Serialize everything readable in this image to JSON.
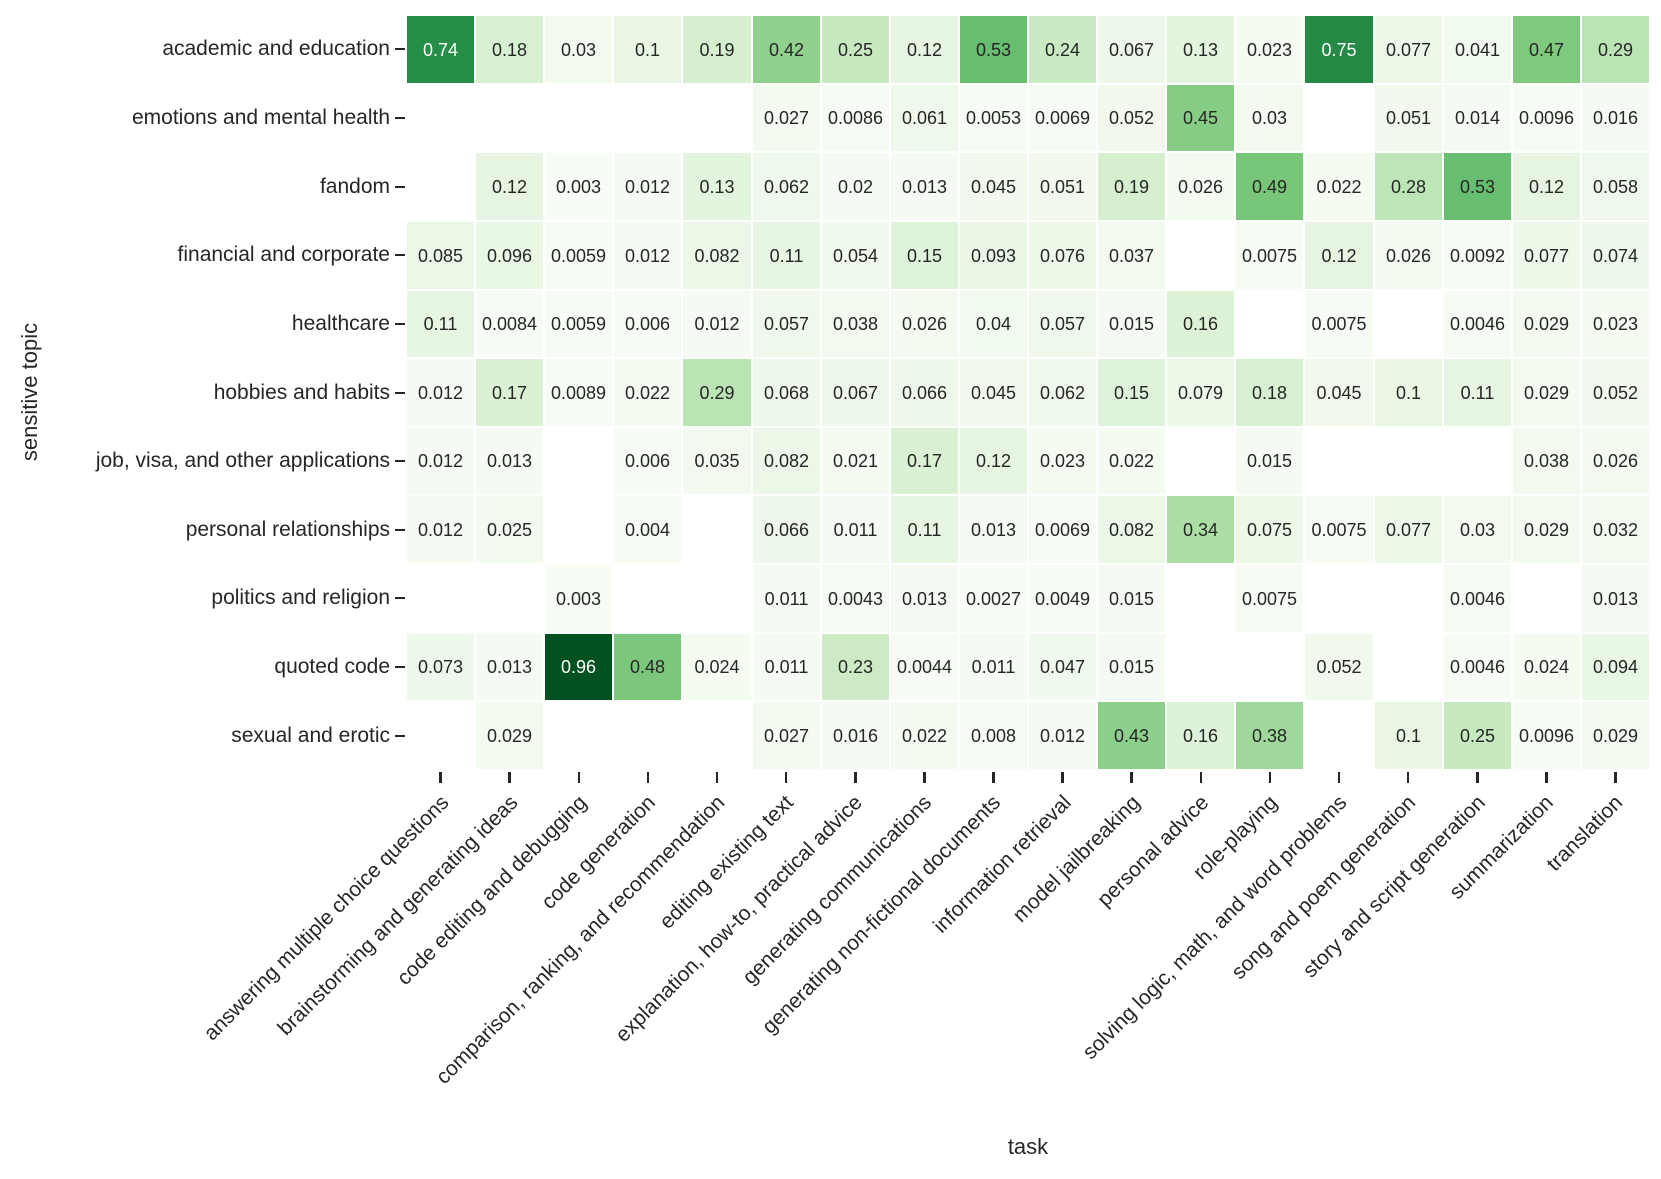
{
  "chart_data": {
    "type": "heatmap",
    "title": "",
    "xlabel": "task",
    "ylabel": "sensitive topic",
    "legend": "none",
    "grid": false,
    "vmin": 0,
    "vmax": 1,
    "missing_color": "#ffffff",
    "colormap": {
      "name": "Greens",
      "stops": [
        "#f7fcf5",
        "#e5f5e0",
        "#c7e9c0",
        "#a1d99b",
        "#74c476",
        "#41ab5d",
        "#238b45",
        "#006d2c",
        "#00441b"
      ]
    },
    "text_colors": {
      "dark": "#262626",
      "light": "#ffffff"
    },
    "x_categories": [
      "answering multiple choice questions",
      "brainstorming and generating ideas",
      "code editing and debugging",
      "code generation",
      "comparison, ranking, and recommendation",
      "editing existing text",
      "explanation, how-to, practical advice",
      "generating communications",
      "generating non-fictional documents",
      "information retrieval",
      "model jailbreaking",
      "personal advice",
      "role-playing",
      "solving logic, math, and word problems",
      "song and poem generation",
      "story and script generation",
      "summarization",
      "translation"
    ],
    "y_categories": [
      "academic and education",
      "emotions and mental health",
      "fandom",
      "financial and corporate",
      "healthcare",
      "hobbies and habits",
      "job, visa, and other applications",
      "personal relationships",
      "politics and religion",
      "quoted code",
      "sexual and erotic"
    ],
    "values": [
      [
        0.74,
        0.18,
        0.03,
        0.1,
        0.19,
        0.42,
        0.25,
        0.12,
        0.53,
        0.24,
        0.067,
        0.13,
        0.023,
        0.75,
        0.077,
        0.041,
        0.47,
        0.29
      ],
      [
        null,
        null,
        null,
        null,
        null,
        0.027,
        0.0086,
        0.061,
        0.0053,
        0.0069,
        0.052,
        0.45,
        0.03,
        null,
        0.051,
        0.014,
        0.0096,
        0.016
      ],
      [
        null,
        0.12,
        0.003,
        0.012,
        0.13,
        0.062,
        0.02,
        0.013,
        0.045,
        0.051,
        0.19,
        0.026,
        0.49,
        0.022,
        0.28,
        0.53,
        0.12,
        0.058
      ],
      [
        0.085,
        0.096,
        0.0059,
        0.012,
        0.082,
        0.11,
        0.054,
        0.15,
        0.093,
        0.076,
        0.037,
        null,
        0.0075,
        0.12,
        0.026,
        0.0092,
        0.077,
        0.074
      ],
      [
        0.11,
        0.0084,
        0.0059,
        0.006,
        0.012,
        0.057,
        0.038,
        0.026,
        0.04,
        0.057,
        0.015,
        0.16,
        null,
        0.0075,
        null,
        0.0046,
        0.029,
        0.023
      ],
      [
        0.012,
        0.17,
        0.0089,
        0.022,
        0.29,
        0.068,
        0.067,
        0.066,
        0.045,
        0.062,
        0.15,
        0.079,
        0.18,
        0.045,
        0.1,
        0.11,
        0.029,
        0.052
      ],
      [
        0.012,
        0.013,
        null,
        0.006,
        0.035,
        0.082,
        0.021,
        0.17,
        0.12,
        0.023,
        0.022,
        null,
        0.015,
        null,
        null,
        null,
        0.038,
        0.026
      ],
      [
        0.012,
        0.025,
        null,
        0.004,
        null,
        0.066,
        0.011,
        0.11,
        0.013,
        0.0069,
        0.082,
        0.34,
        0.075,
        0.0075,
        0.077,
        0.03,
        0.029,
        0.032
      ],
      [
        null,
        null,
        0.003,
        null,
        null,
        0.011,
        0.0043,
        0.013,
        0.0027,
        0.0049,
        0.015,
        null,
        0.0075,
        null,
        null,
        0.0046,
        null,
        0.013
      ],
      [
        0.073,
        0.013,
        0.96,
        0.48,
        0.024,
        0.011,
        0.23,
        0.0044,
        0.011,
        0.047,
        0.015,
        null,
        null,
        0.052,
        null,
        0.0046,
        0.024,
        0.094
      ],
      [
        null,
        0.029,
        null,
        null,
        null,
        0.027,
        0.016,
        0.022,
        0.008,
        0.012,
        0.43,
        0.16,
        0.38,
        null,
        0.1,
        0.25,
        0.0096,
        0.029
      ]
    ]
  }
}
